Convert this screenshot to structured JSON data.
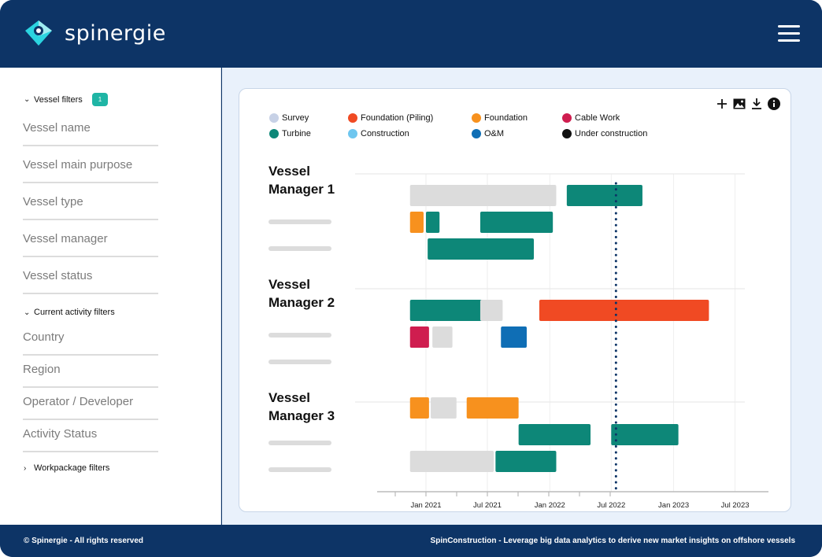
{
  "header": {
    "brand": "spinergie",
    "menu_icon": "hamburger-menu-icon",
    "brand_colors": {
      "navy": "#0d3466",
      "accent": "#2bd4e0"
    }
  },
  "sidebar": {
    "vessel_filters": {
      "label": "Vessel filters",
      "badge": "1",
      "fields": [
        "Vessel name",
        "Vessel main purpose",
        "Vessel type",
        "Vessel manager",
        "Vessel status"
      ]
    },
    "current_activity_filters": {
      "label": "Current activity filters",
      "fields": [
        "Country",
        "Region",
        "Operator / Developer",
        "Activity Status"
      ]
    },
    "workpackage_filters": {
      "label": "Workpackage filters"
    }
  },
  "toolbar": {
    "icons": [
      "plus-icon",
      "image-icon",
      "download-icon",
      "info-icon"
    ]
  },
  "chart_data": {
    "type": "gantt",
    "legend": [
      {
        "name": "Survey",
        "color": "#c7d1e6"
      },
      {
        "name": "Foundation (Piling)",
        "color": "#f04a23"
      },
      {
        "name": "Foundation",
        "color": "#f7911e"
      },
      {
        "name": "Cable Work",
        "color": "#cf1d4f"
      },
      {
        "name": "Turbine",
        "color": "#0d8778"
      },
      {
        "name": "Construction",
        "color": "#6ec6ef"
      },
      {
        "name": "O&M",
        "color": "#0f6eb5"
      },
      {
        "name": "Under construction",
        "color": "#111111"
      }
    ],
    "x_ticks": [
      "Jan 2021",
      "Jul 2021",
      "Jan 2022",
      "Jul 2022",
      "Jan 2023",
      "Jul 2023"
    ],
    "x_tick_dates": [
      "2021-01-01",
      "2021-07-01",
      "2022-01-01",
      "2022-07-01",
      "2023-01-01",
      "2023-07-01"
    ],
    "today_marker": "2022-07-15",
    "groups": [
      {
        "title": "Vessel Manager 1",
        "rows": [
          [
            {
              "start": "2020-11-15",
              "end": "2022-01-20",
              "color": "#dcdcdc"
            },
            {
              "start": "2022-02-20",
              "end": "2022-10-01",
              "color": "#0d8778"
            }
          ],
          [
            {
              "start": "2020-11-15",
              "end": "2020-12-25",
              "color": "#f7911e"
            },
            {
              "start": "2021-01-01",
              "end": "2021-02-10",
              "color": "#0d8778"
            },
            {
              "start": "2021-06-10",
              "end": "2022-01-10",
              "color": "#0d8778"
            }
          ],
          [
            {
              "start": "2021-01-06",
              "end": "2021-11-15",
              "color": "#0d8778"
            }
          ]
        ]
      },
      {
        "title": "Vessel Manager 2",
        "rows": [
          [
            {
              "start": "2020-11-15",
              "end": "2021-08-01",
              "color": "#0d8778"
            },
            {
              "start": "2021-06-10",
              "end": "2021-08-15",
              "color": "#dcdcdc"
            },
            {
              "start": "2021-12-01",
              "end": "2023-04-15",
              "color": "#f04a23"
            }
          ],
          [
            {
              "start": "2020-11-15",
              "end": "2021-01-10",
              "color": "#cf1d4f"
            },
            {
              "start": "2021-01-20",
              "end": "2021-03-20",
              "color": "#dcdcdc"
            },
            {
              "start": "2021-08-10",
              "end": "2021-10-25",
              "color": "#0f6eb5"
            }
          ],
          []
        ]
      },
      {
        "title": "Vessel Manager 3",
        "rows": [
          [
            {
              "start": "2020-11-15",
              "end": "2021-01-10",
              "color": "#f7911e"
            },
            {
              "start": "2021-01-15",
              "end": "2021-04-01",
              "color": "#dcdcdc"
            },
            {
              "start": "2021-05-01",
              "end": "2021-10-01",
              "color": "#f7911e"
            }
          ],
          [
            {
              "start": "2021-10-01",
              "end": "2022-05-01",
              "color": "#0d8778"
            },
            {
              "start": "2022-07-01",
              "end": "2023-01-15",
              "color": "#0d8778"
            }
          ],
          [
            {
              "start": "2020-11-15",
              "end": "2021-07-20",
              "color": "#dcdcdc"
            },
            {
              "start": "2021-07-25",
              "end": "2022-01-20",
              "color": "#0d8778"
            }
          ]
        ]
      }
    ]
  },
  "footer": {
    "left": "© Spinergie - All rights reserved",
    "right": "SpinConstruction - Leverage big data analytics to derive new market insights on offshore vessels"
  }
}
